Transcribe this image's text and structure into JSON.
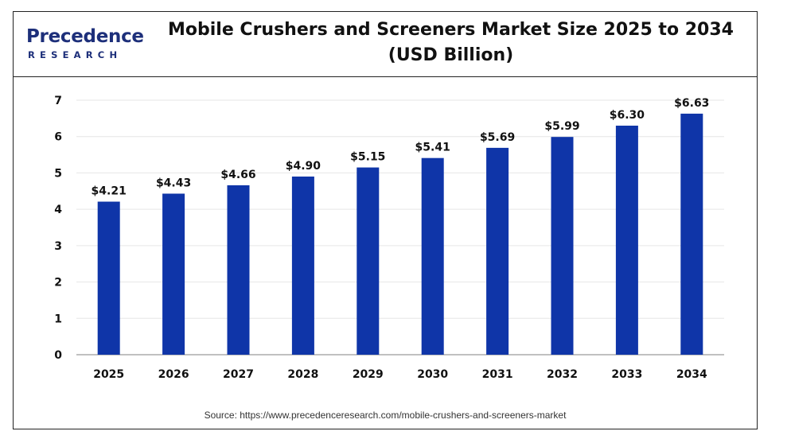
{
  "logo": {
    "main": "Precedence",
    "sub": "RESEARCH"
  },
  "colors": {
    "bar": "#0f35a8",
    "brand": "#1d2f7a",
    "grid": "#e6e6e6",
    "axis": "#9a9a9a"
  },
  "source": "Source: https://www.precedenceresearch.com/mobile-crushers-and-screeners-market",
  "chart_data": {
    "type": "bar",
    "title": "Mobile Crushers and Screeners Market Size 2025 to 2034",
    "subtitle": "(USD Billion)",
    "xlabel": "",
    "ylabel": "",
    "categories": [
      "2025",
      "2026",
      "2027",
      "2028",
      "2029",
      "2030",
      "2031",
      "2032",
      "2033",
      "2034"
    ],
    "values": [
      4.21,
      4.43,
      4.66,
      4.9,
      5.15,
      5.41,
      5.69,
      5.99,
      6.3,
      6.63
    ],
    "data_labels": [
      "$4.21",
      "$4.43",
      "$4.66",
      "$4.90",
      "$5.15",
      "$5.41",
      "$5.69",
      "$5.99",
      "$6.30",
      "$6.63"
    ],
    "ylim": [
      0,
      7
    ],
    "yticks": [
      "0",
      "1",
      "2",
      "3",
      "4",
      "5",
      "6",
      "7"
    ],
    "grid": true,
    "legend": "none"
  }
}
